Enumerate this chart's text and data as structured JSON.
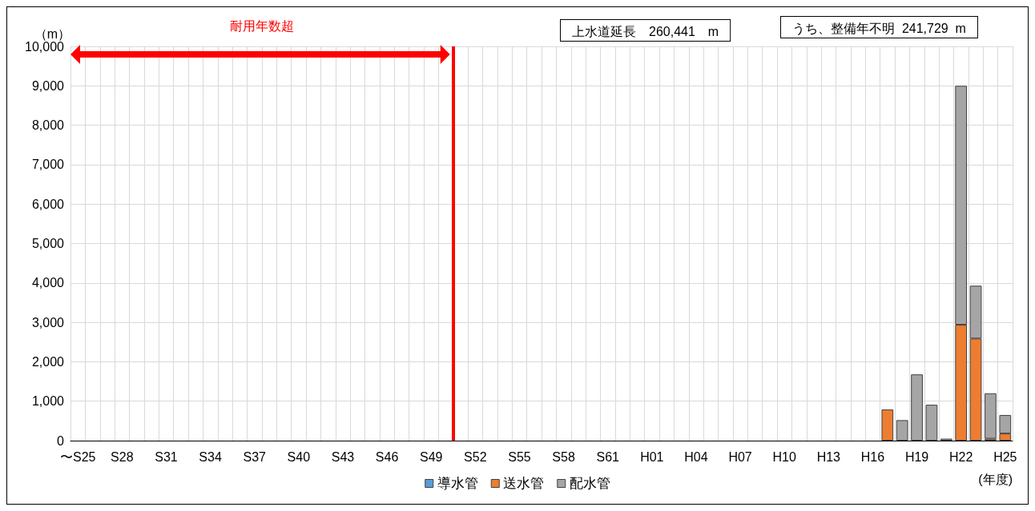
{
  "chart_data": {
    "type": "bar",
    "stacked": true,
    "xlabel": "(年度)",
    "ylabel": "（m）",
    "categories": [
      "〜S25",
      null,
      null,
      "S28",
      null,
      null,
      "S31",
      null,
      null,
      "S34",
      null,
      null,
      "S37",
      null,
      null,
      "S40",
      null,
      null,
      "S43",
      null,
      null,
      "S46",
      null,
      null,
      "S49",
      null,
      null,
      "S52",
      null,
      null,
      "S55",
      null,
      null,
      "S58",
      null,
      null,
      "S61",
      null,
      null,
      "H01",
      null,
      null,
      "H04",
      null,
      null,
      "H07",
      null,
      null,
      "H10",
      null,
      null,
      "H13",
      null,
      null,
      "H16",
      null,
      null,
      "H19",
      null,
      null,
      "H22",
      null,
      null,
      "H25"
    ],
    "series": [
      {
        "name": "導水管",
        "color": "#5b9bd5",
        "values": [
          0,
          0,
          0,
          0,
          0,
          0,
          0,
          0,
          0,
          0,
          0,
          0,
          0,
          0,
          0,
          0,
          0,
          0,
          0,
          0,
          0,
          0,
          0,
          0,
          0,
          0,
          0,
          0,
          0,
          0,
          0,
          0,
          0,
          0,
          0,
          0,
          0,
          0,
          0,
          0,
          0,
          0,
          0,
          0,
          0,
          0,
          0,
          0,
          0,
          0,
          0,
          0,
          0,
          0,
          0,
          0,
          0,
          0,
          0,
          0,
          0,
          0,
          0,
          0
        ]
      },
      {
        "name": "送水管",
        "color": "#ed7d31",
        "values": [
          0,
          0,
          0,
          0,
          0,
          0,
          0,
          0,
          0,
          0,
          0,
          0,
          0,
          0,
          0,
          0,
          0,
          0,
          0,
          0,
          0,
          0,
          0,
          0,
          0,
          0,
          0,
          0,
          0,
          0,
          0,
          0,
          0,
          0,
          0,
          0,
          0,
          0,
          0,
          0,
          0,
          0,
          0,
          0,
          0,
          0,
          0,
          0,
          0,
          0,
          0,
          0,
          0,
          0,
          0,
          790,
          0,
          0,
          0,
          0,
          2940,
          2590,
          50,
          180
        ]
      },
      {
        "name": "配水管",
        "color": "#a5a5a5",
        "values": [
          0,
          0,
          0,
          0,
          0,
          0,
          0,
          0,
          0,
          0,
          0,
          0,
          0,
          0,
          0,
          0,
          0,
          0,
          0,
          0,
          0,
          0,
          0,
          0,
          0,
          0,
          0,
          0,
          0,
          0,
          0,
          0,
          0,
          0,
          0,
          0,
          0,
          0,
          0,
          0,
          0,
          0,
          0,
          0,
          0,
          0,
          0,
          0,
          0,
          0,
          0,
          0,
          0,
          0,
          0,
          0,
          520,
          1680,
          910,
          50,
          6060,
          1340,
          1150,
          470
        ]
      }
    ],
    "ylim": [
      0,
      10000
    ],
    "yticks": [
      0,
      {
        "value": 1000,
        "label": "1,000"
      },
      {
        "value": 2000,
        "label": "2,000"
      },
      {
        "value": 3000,
        "label": "3,000"
      },
      {
        "value": 4000,
        "label": "4,000"
      },
      {
        "value": 5000,
        "label": "5,000"
      },
      {
        "value": 6000,
        "label": "6,000"
      },
      {
        "value": 7000,
        "label": "7,000"
      },
      {
        "value": 8000,
        "label": "8,000"
      },
      {
        "value": 9000,
        "label": "9,000"
      },
      {
        "value": 10000,
        "label": "10,000"
      }
    ],
    "annotations": [
      "耐用年数超",
      "上水道延長　260,441　m",
      "うち、整備年不明  241,729  m"
    ],
    "grid": true,
    "legend": "bottom"
  }
}
